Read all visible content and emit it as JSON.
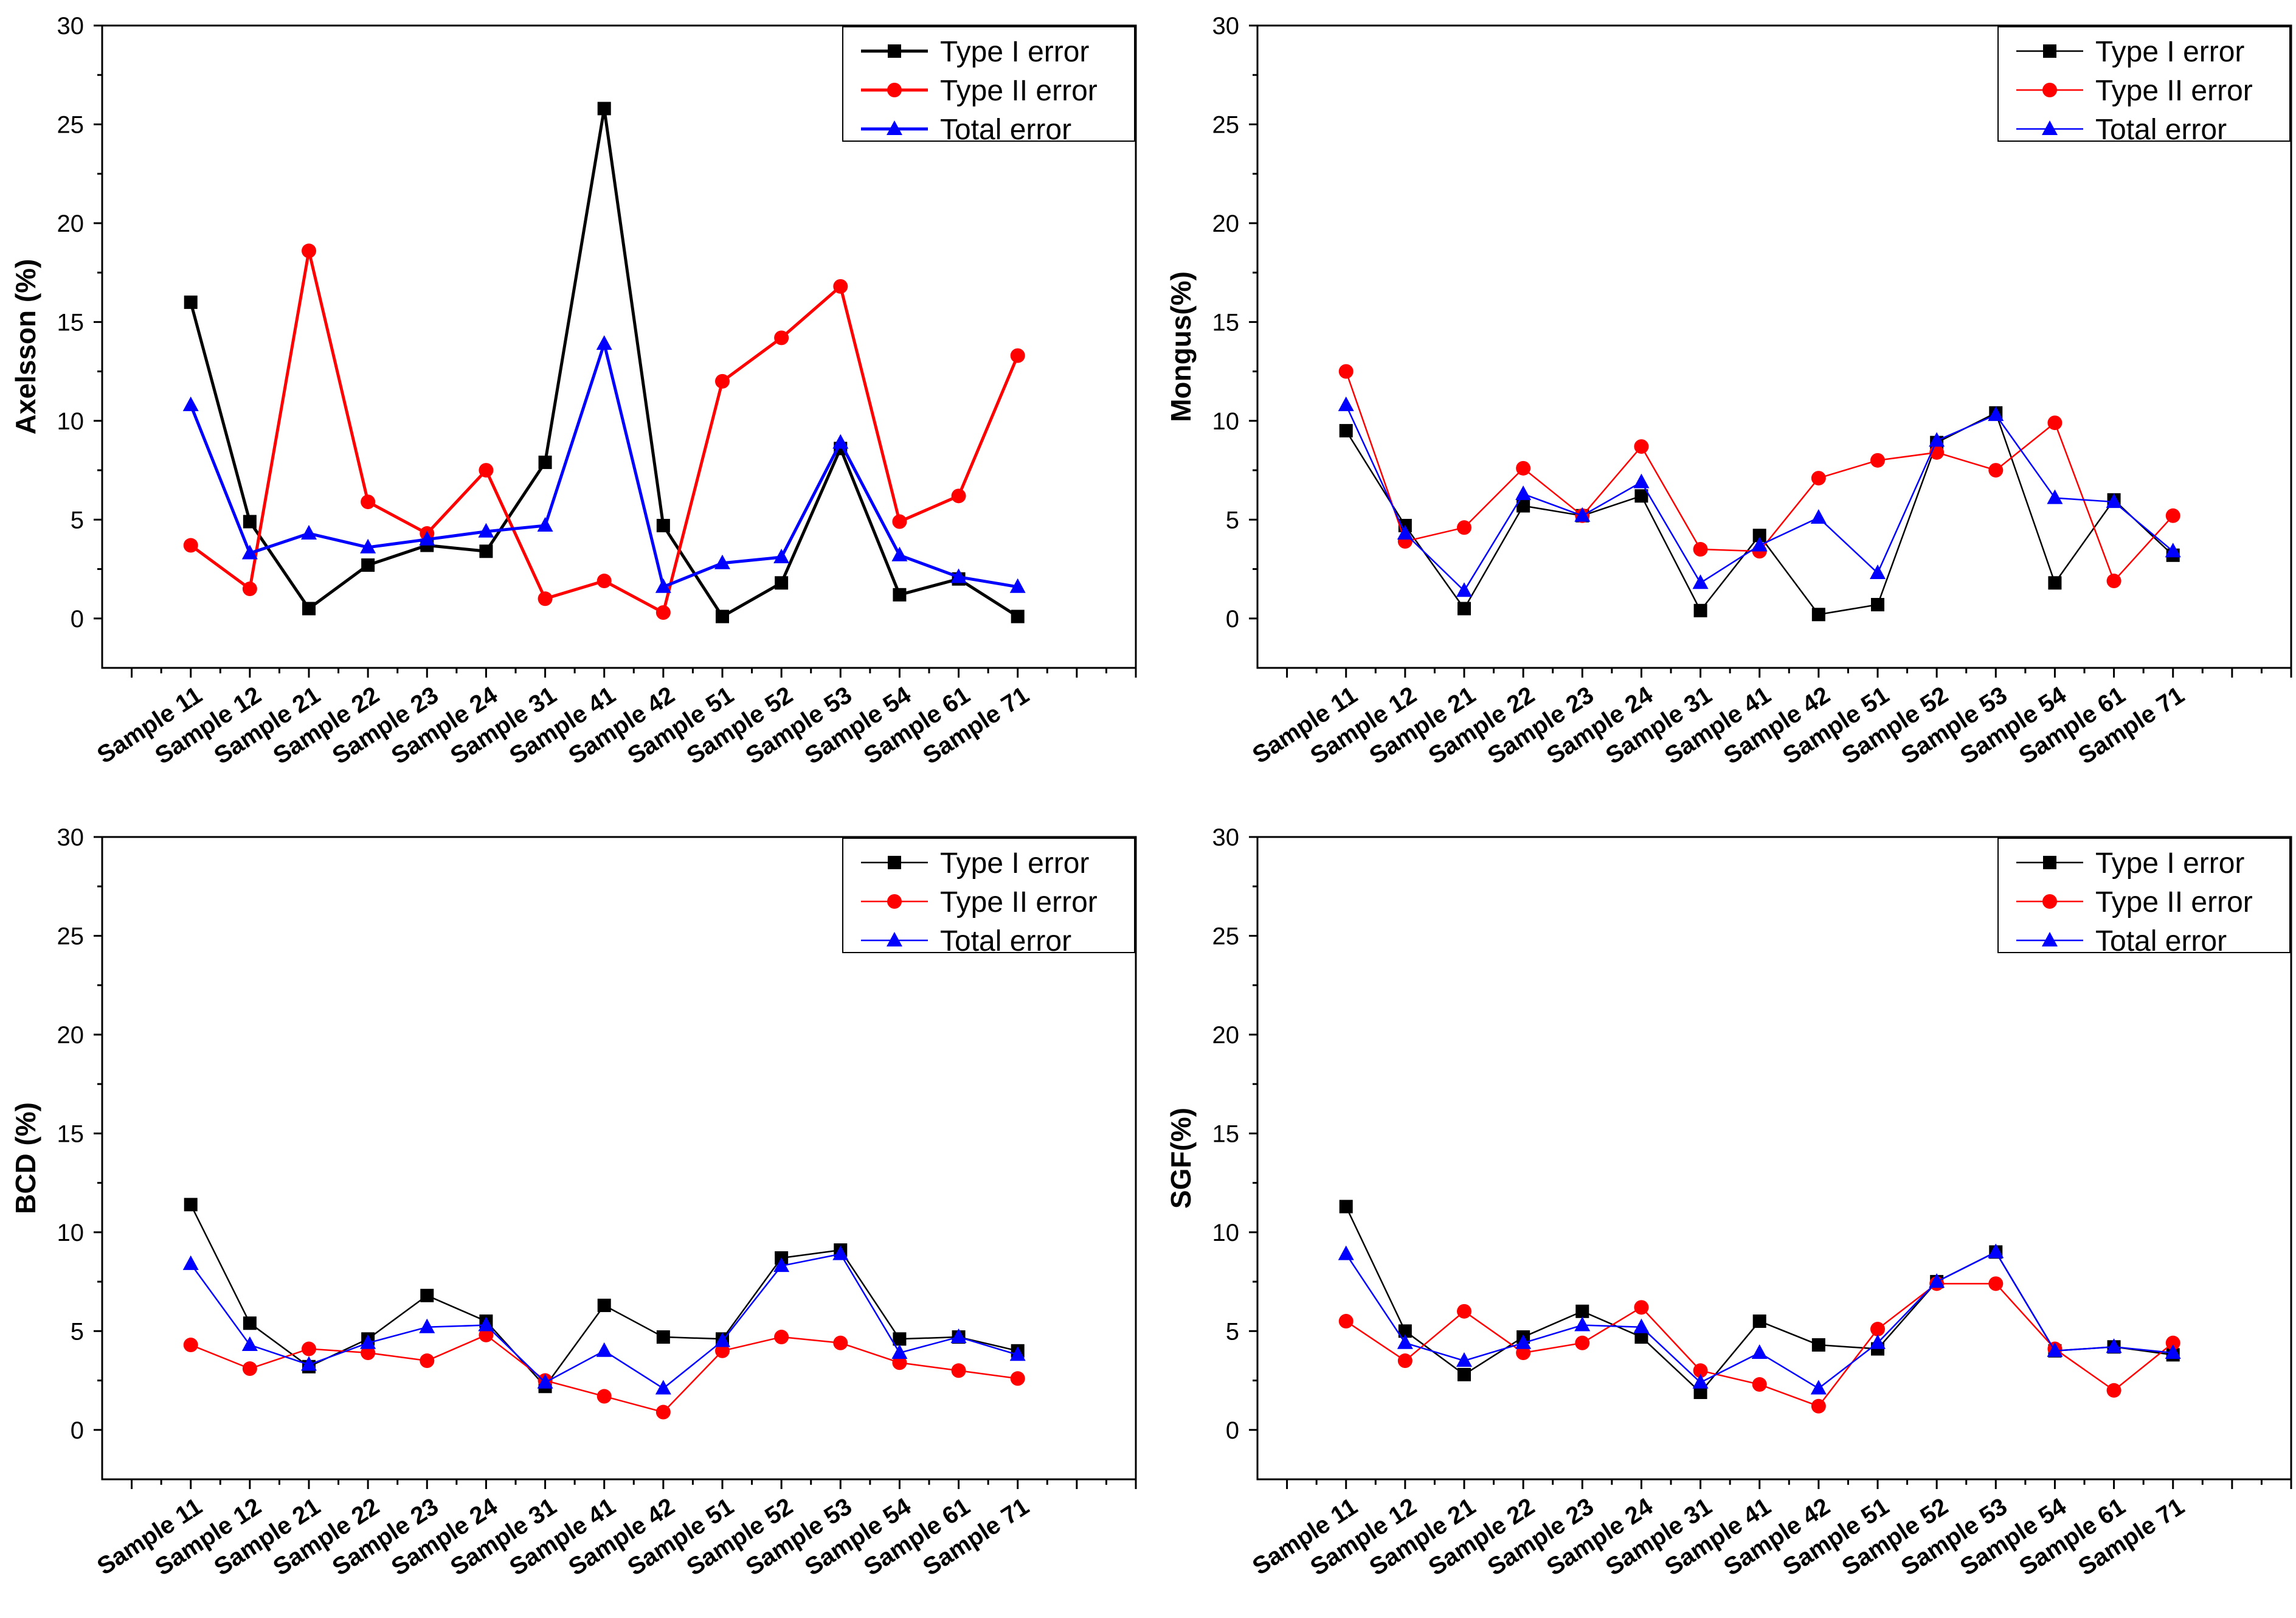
{
  "colors": {
    "type1": "#000000",
    "type2": "#ff0000",
    "total": "#0000ff"
  },
  "legend": {
    "type1": "Type I error",
    "type2": "Type II error",
    "total": "Total error"
  },
  "chart_data": [
    {
      "type": "line",
      "ylabel": "Axelsson (%)",
      "ylim": [
        0,
        30
      ],
      "yticks": [
        0,
        5,
        10,
        15,
        20,
        25,
        30
      ],
      "legend_position": "top-right",
      "categories": [
        "Sample 11",
        "Sample 12",
        "Sample 21",
        "Sample 22",
        "Sample 23",
        "Sample 24",
        "Sample 31",
        "Sample 41",
        "Sample 42",
        "Sample 51",
        "Sample 52",
        "Sample 53",
        "Sample 54",
        "Sample 61",
        "Sample 71"
      ],
      "series": [
        {
          "name": "Type I error",
          "marker": "square",
          "values": [
            16.0,
            4.9,
            0.5,
            2.7,
            3.7,
            3.4,
            7.9,
            25.8,
            4.7,
            0.1,
            1.8,
            8.6,
            1.2,
            2.0,
            0.1
          ]
        },
        {
          "name": "Type II error",
          "marker": "circle",
          "values": [
            3.7,
            1.5,
            18.6,
            5.9,
            4.3,
            7.5,
            1.0,
            1.9,
            0.3,
            12.0,
            14.2,
            16.8,
            4.9,
            6.2,
            13.3
          ]
        },
        {
          "name": "Total error",
          "marker": "triangle",
          "values": [
            10.8,
            3.3,
            4.3,
            3.6,
            4.0,
            4.4,
            4.7,
            13.9,
            1.6,
            2.8,
            3.1,
            8.9,
            3.2,
            2.1,
            1.6
          ]
        }
      ]
    },
    {
      "type": "line",
      "ylabel": "Mongus(%)",
      "ylim": [
        0,
        30
      ],
      "yticks": [
        0,
        5,
        10,
        15,
        20,
        25,
        30
      ],
      "legend_position": "top-right",
      "categories": [
        "Sample 11",
        "Sample 12",
        "Sample 21",
        "Sample 22",
        "Sample 23",
        "Sample 24",
        "Sample 31",
        "Sample 41",
        "Sample 42",
        "Sample 51",
        "Sample 52",
        "Sample 53",
        "Sample 54",
        "Sample 61",
        "Sample 71"
      ],
      "series": [
        {
          "name": "Type I error",
          "marker": "square",
          "values": [
            9.5,
            4.7,
            0.5,
            5.7,
            5.2,
            6.2,
            0.4,
            4.2,
            0.2,
            0.7,
            8.9,
            10.4,
            1.8,
            6.0,
            3.2
          ]
        },
        {
          "name": "Type II error",
          "marker": "circle",
          "values": [
            12.5,
            3.9,
            4.6,
            7.6,
            5.2,
            8.7,
            3.5,
            3.4,
            7.1,
            8.0,
            8.4,
            7.5,
            9.9,
            1.9,
            5.2
          ]
        },
        {
          "name": "Total error",
          "marker": "triangle",
          "values": [
            10.8,
            4.3,
            1.4,
            6.3,
            5.2,
            6.9,
            1.8,
            3.7,
            5.1,
            2.3,
            9.0,
            10.3,
            6.1,
            5.9,
            3.4
          ]
        }
      ]
    },
    {
      "type": "line",
      "ylabel": "BCD (%)",
      "ylim": [
        0,
        30
      ],
      "yticks": [
        0,
        5,
        10,
        15,
        20,
        25,
        30
      ],
      "legend_position": "top-right",
      "categories": [
        "Sample 11",
        "Sample 12",
        "Sample 21",
        "Sample 22",
        "Sample 23",
        "Sample 24",
        "Sample 31",
        "Sample 41",
        "Sample 42",
        "Sample 51",
        "Sample 52",
        "Sample 53",
        "Sample 54",
        "Sample 61",
        "Sample 71"
      ],
      "series": [
        {
          "name": "Type I error",
          "marker": "square",
          "values": [
            11.4,
            5.4,
            3.2,
            4.6,
            6.8,
            5.5,
            2.2,
            6.3,
            4.7,
            4.6,
            8.7,
            9.1,
            4.6,
            4.7,
            4.0
          ]
        },
        {
          "name": "Type II error",
          "marker": "circle",
          "values": [
            4.3,
            3.1,
            4.1,
            3.9,
            3.5,
            4.8,
            2.5,
            1.7,
            0.9,
            4.0,
            4.7,
            4.4,
            3.4,
            3.0,
            2.6
          ]
        },
        {
          "name": "Total error",
          "marker": "triangle",
          "values": [
            8.4,
            4.3,
            3.3,
            4.4,
            5.2,
            5.3,
            2.4,
            4.0,
            2.1,
            4.5,
            8.3,
            8.9,
            3.9,
            4.7,
            3.8
          ]
        }
      ]
    },
    {
      "type": "line",
      "ylabel": "SGF(%)",
      "ylim": [
        0,
        30
      ],
      "yticks": [
        0,
        5,
        10,
        15,
        20,
        25,
        30
      ],
      "legend_position": "top-right",
      "categories": [
        "Sample 11",
        "Sample 12",
        "Sample 21",
        "Sample 22",
        "Sample 23",
        "Sample 24",
        "Sample 31",
        "Sample 41",
        "Sample 42",
        "Sample 51",
        "Sample 52",
        "Sample 53",
        "Sample 54",
        "Sample 61",
        "Sample 71"
      ],
      "series": [
        {
          "name": "Type I error",
          "marker": "square",
          "values": [
            11.3,
            5.0,
            2.8,
            4.7,
            6.0,
            4.7,
            1.9,
            5.5,
            4.3,
            4.1,
            7.5,
            9.0,
            4.0,
            4.2,
            3.8
          ]
        },
        {
          "name": "Type II error",
          "marker": "circle",
          "values": [
            5.5,
            3.5,
            6.0,
            3.9,
            4.4,
            6.2,
            3.0,
            2.3,
            1.2,
            5.1,
            7.4,
            7.4,
            4.1,
            2.0,
            4.4
          ]
        },
        {
          "name": "Total error",
          "marker": "triangle",
          "values": [
            8.9,
            4.4,
            3.5,
            4.4,
            5.3,
            5.2,
            2.4,
            3.9,
            2.1,
            4.4,
            7.5,
            9.0,
            4.0,
            4.2,
            3.9
          ]
        }
      ]
    }
  ]
}
